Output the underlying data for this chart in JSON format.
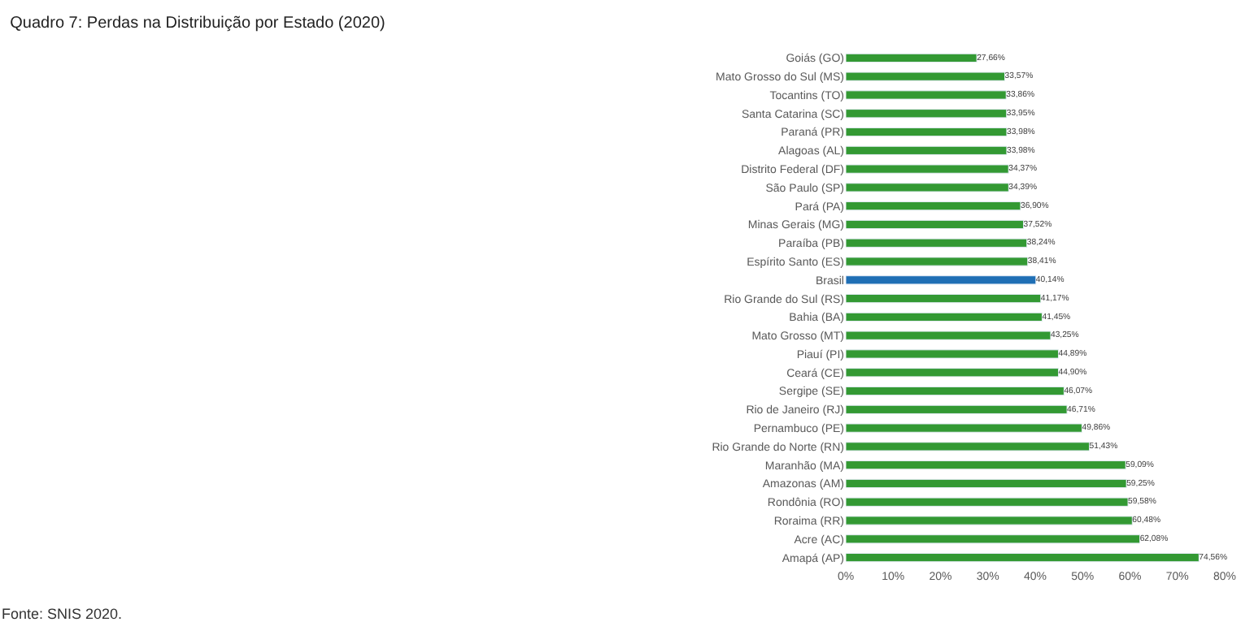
{
  "chart_data": {
    "type": "bar",
    "orientation": "horizontal",
    "title": "Quadro 7: Perdas na Distribuição por Estado (2020)",
    "annotations": [
      "Fonte: SNIS 2020."
    ],
    "categories": [
      "Goiás (GO)",
      "Mato Grosso do Sul (MS)",
      "Tocantins (TO)",
      "Santa Catarina (SC)",
      "Paraná (PR)",
      "Alagoas (AL)",
      "Distrito Federal (DF)",
      "São Paulo (SP)",
      "Pará (PA)",
      "Minas Gerais (MG)",
      "Paraíba (PB)",
      "Espírito Santo (ES)",
      "Brasil",
      "Rio Grande do Sul (RS)",
      "Bahia (BA)",
      "Mato Grosso (MT)",
      "Piauí (PI)",
      "Ceará (CE)",
      "Sergipe (SE)",
      "Rio de Janeiro (RJ)",
      "Pernambuco (PE)",
      "Rio Grande do Norte (RN)",
      "Maranhão (MA)",
      "Amazonas (AM)",
      "Rondônia (RO)",
      "Roraima (RR)",
      "Acre (AC)",
      "Amapá (AP)"
    ],
    "values": [
      27.66,
      33.57,
      33.86,
      33.95,
      33.98,
      33.98,
      34.37,
      34.39,
      36.9,
      37.52,
      38.24,
      38.41,
      40.14,
      41.17,
      41.45,
      43.25,
      44.89,
      44.9,
      46.07,
      46.71,
      49.86,
      51.43,
      59.09,
      59.25,
      59.58,
      60.48,
      62.08,
      74.56
    ],
    "value_labels": [
      "27,66%",
      "33,57%",
      "33,86%",
      "33,95%",
      "33,98%",
      "33,98%",
      "34,37%",
      "34,39%",
      "36,90%",
      "37,52%",
      "38,24%",
      "38,41%",
      "40,14%",
      "41,17%",
      "41,45%",
      "43,25%",
      "44,89%",
      "44,90%",
      "46,07%",
      "46,71%",
      "49,86%",
      "51,43%",
      "59,09%",
      "59,25%",
      "59,58%",
      "60,48%",
      "62,08%",
      "74,56%"
    ],
    "colors": [
      "#339933",
      "#339933",
      "#339933",
      "#339933",
      "#339933",
      "#339933",
      "#339933",
      "#339933",
      "#339933",
      "#339933",
      "#339933",
      "#339933",
      "#1f6fb5",
      "#339933",
      "#339933",
      "#339933",
      "#339933",
      "#339933",
      "#339933",
      "#339933",
      "#339933",
      "#339933",
      "#339933",
      "#339933",
      "#339933",
      "#339933",
      "#339933",
      "#339933"
    ],
    "xlim": [
      0,
      80
    ],
    "xticks": [
      {
        "value": 0,
        "label": "0%"
      },
      {
        "value": 10,
        "label": "10%"
      },
      {
        "value": 20,
        "label": "20%"
      },
      {
        "value": 30,
        "label": "30%"
      },
      {
        "value": 40,
        "label": "40%"
      },
      {
        "value": 50,
        "label": "50%"
      },
      {
        "value": 60,
        "label": "60%"
      },
      {
        "value": 70,
        "label": "70%"
      },
      {
        "value": 80,
        "label": "80%"
      }
    ],
    "legend": false
  }
}
